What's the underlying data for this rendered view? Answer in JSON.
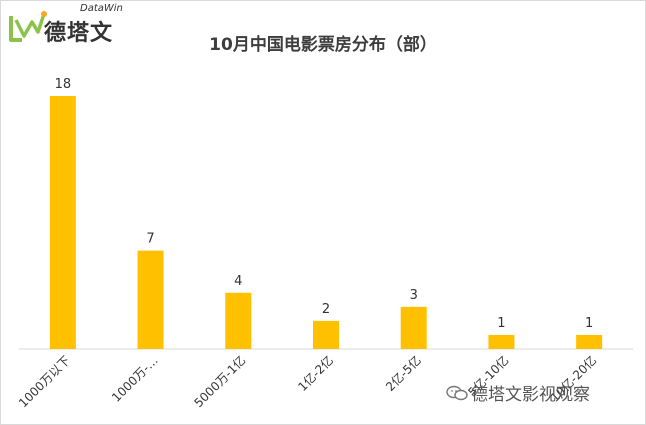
{
  "logo": {
    "name": "德塔文",
    "sub": "DataWin"
  },
  "watermark": {
    "text": "德塔文影视观察"
  },
  "chart_data": {
    "type": "bar",
    "title": "10月中国电影票房分布（部）",
    "categories": [
      "1000万以下",
      "1000万-…",
      "5000万-1亿",
      "1亿-2亿",
      "2亿-5亿",
      "5亿-10亿",
      "10亿-20亿"
    ],
    "values": [
      18,
      7,
      4,
      2,
      3,
      1,
      1
    ],
    "ylim": [
      0,
      18
    ],
    "bar_color": "#FFC000",
    "grid": false,
    "xlabel": "",
    "ylabel": ""
  }
}
